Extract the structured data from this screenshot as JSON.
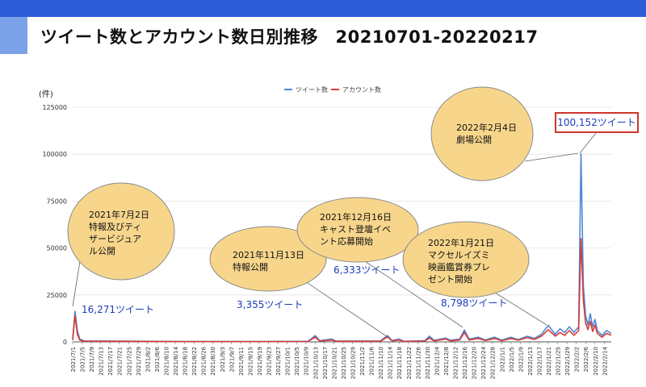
{
  "title": "ツイート数とアカウント数日別推移　20210701-20220217",
  "y_unit": "(件)",
  "legend": [
    "ツイート数",
    "アカウント数"
  ],
  "colors": {
    "tweets": "#4f86d6",
    "accounts": "#d63c35",
    "bubble_fill": "#f7d68c",
    "bubble_stroke": "#8a8a8a",
    "label_blue": "#1a3cb8"
  },
  "chart_data": {
    "type": "line",
    "ylabel": "(件)",
    "ylim": [
      0,
      125000
    ],
    "yticks": [
      0,
      25000,
      50000,
      75000,
      100000,
      125000
    ],
    "x_tick_labels": [
      "2021/7/1",
      "2021/7/5",
      "2021/7/9",
      "2021/7/13",
      "2021/7/17",
      "2021/7/21",
      "2021/7/25",
      "2021/7/29",
      "2021/8/2",
      "2021/8/6",
      "2021/8/10",
      "2021/8/14",
      "2021/8/18",
      "2021/8/22",
      "2021/8/26",
      "2021/8/30",
      "2021/9/3",
      "2021/9/7",
      "2021/9/11",
      "2021/9/15",
      "2021/9/19",
      "2021/9/23",
      "2021/9/27",
      "2021/10/1",
      "2021/10/5",
      "2021/10/9",
      "2021/10/13",
      "2021/10/17",
      "2021/10/21",
      "2021/10/25",
      "2021/10/29",
      "2021/11/2",
      "2021/11/6",
      "2021/11/10",
      "2021/11/14",
      "2021/11/18",
      "2021/11/22",
      "2021/11/26",
      "2021/11/30",
      "2021/12/4",
      "2021/12/8",
      "2021/12/12",
      "2021/12/16",
      "2021/12/20",
      "2021/12/24",
      "2021/12/28",
      "2022/1/1",
      "2022/1/5",
      "2022/1/9",
      "2022/1/13",
      "2022/1/17",
      "2022/1/21",
      "2022/1/25",
      "2022/1/29",
      "2022/2/2",
      "2022/2/6",
      "2022/2/10",
      "2022/2/14"
    ],
    "series": [
      {
        "name": "ツイート数",
        "points": [
          [
            "2021/7/1",
            1200
          ],
          [
            "2021/7/2",
            16271
          ],
          [
            "2021/7/3",
            6000
          ],
          [
            "2021/7/4",
            1500
          ],
          [
            "2021/7/6",
            500
          ],
          [
            "2021/7/20",
            400
          ],
          [
            "2021/8/15",
            200
          ],
          [
            "2021/9/20",
            200
          ],
          [
            "2021/10/10",
            300
          ],
          [
            "2021/10/13",
            3355
          ],
          [
            "2021/10/15",
            600
          ],
          [
            "2021/10/20",
            1500
          ],
          [
            "2021/10/22",
            400
          ],
          [
            "2021/11/10",
            500
          ],
          [
            "2021/11/13",
            3355
          ],
          [
            "2021/11/15",
            700
          ],
          [
            "2021/11/18",
            1500
          ],
          [
            "2021/11/20",
            300
          ],
          [
            "2021/11/29",
            600
          ],
          [
            "2021/12/1",
            3000
          ],
          [
            "2021/12/3",
            800
          ],
          [
            "2021/12/8",
            2000
          ],
          [
            "2021/12/10",
            800
          ],
          [
            "2021/12/14",
            1500
          ],
          [
            "2021/12/16",
            6333
          ],
          [
            "2021/12/18",
            1500
          ],
          [
            "2021/12/22",
            2500
          ],
          [
            "2021/12/25",
            1000
          ],
          [
            "2021/12/29",
            2500
          ],
          [
            "2022/1/1",
            900
          ],
          [
            "2022/1/5",
            2500
          ],
          [
            "2022/1/8",
            1200
          ],
          [
            "2022/1/12",
            3000
          ],
          [
            "2022/1/15",
            1800
          ],
          [
            "2022/1/18",
            4000
          ],
          [
            "2022/1/21",
            8798
          ],
          [
            "2022/1/24",
            4000
          ],
          [
            "2022/1/26",
            7000
          ],
          [
            "2022/1/28",
            5000
          ],
          [
            "2022/1/30",
            8000
          ],
          [
            "2022/2/1",
            5000
          ],
          [
            "2022/2/3",
            8000
          ],
          [
            "2022/2/4",
            100152
          ],
          [
            "2022/2/5",
            30000
          ],
          [
            "2022/2/6",
            14000
          ],
          [
            "2022/2/7",
            9000
          ],
          [
            "2022/2/8",
            15000
          ],
          [
            "2022/2/9",
            8000
          ],
          [
            "2022/2/10",
            12000
          ],
          [
            "2022/2/11",
            6000
          ],
          [
            "2022/2/13",
            3500
          ],
          [
            "2022/2/15",
            6000
          ],
          [
            "2022/2/17",
            4500
          ]
        ]
      },
      {
        "name": "アカウント数",
        "points": [
          [
            "2021/7/1",
            900
          ],
          [
            "2021/7/2",
            14000
          ],
          [
            "2021/7/3",
            4000
          ],
          [
            "2021/7/4",
            1000
          ],
          [
            "2021/7/6",
            300
          ],
          [
            "2021/7/20",
            300
          ],
          [
            "2021/8/15",
            150
          ],
          [
            "2021/9/20",
            150
          ],
          [
            "2021/10/10",
            200
          ],
          [
            "2021/10/13",
            2500
          ],
          [
            "2021/10/15",
            400
          ],
          [
            "2021/10/20",
            1000
          ],
          [
            "2021/10/22",
            300
          ],
          [
            "2021/11/10",
            300
          ],
          [
            "2021/11/13",
            2600
          ],
          [
            "2021/11/15",
            500
          ],
          [
            "2021/11/18",
            1000
          ],
          [
            "2021/11/20",
            200
          ],
          [
            "2021/11/29",
            400
          ],
          [
            "2021/12/1",
            2000
          ],
          [
            "2021/12/3",
            500
          ],
          [
            "2021/12/8",
            1500
          ],
          [
            "2021/12/10",
            500
          ],
          [
            "2021/12/14",
            1000
          ],
          [
            "2021/12/16",
            5000
          ],
          [
            "2021/12/18",
            1000
          ],
          [
            "2021/12/22",
            1800
          ],
          [
            "2021/12/25",
            700
          ],
          [
            "2021/12/29",
            1800
          ],
          [
            "2022/1/1",
            600
          ],
          [
            "2022/1/5",
            1800
          ],
          [
            "2022/1/8",
            900
          ],
          [
            "2022/1/12",
            2200
          ],
          [
            "2022/1/15",
            1300
          ],
          [
            "2022/1/18",
            3000
          ],
          [
            "2022/1/21",
            6500
          ],
          [
            "2022/1/24",
            3000
          ],
          [
            "2022/1/26",
            5000
          ],
          [
            "2022/1/28",
            3500
          ],
          [
            "2022/1/30",
            6000
          ],
          [
            "2022/2/1",
            3500
          ],
          [
            "2022/2/3",
            6000
          ],
          [
            "2022/2/4",
            55000
          ],
          [
            "2022/2/5",
            22000
          ],
          [
            "2022/2/6",
            10000
          ],
          [
            "2022/2/7",
            6500
          ],
          [
            "2022/2/8",
            11000
          ],
          [
            "2022/2/9",
            5500
          ],
          [
            "2022/2/10",
            9000
          ],
          [
            "2022/2/11",
            4500
          ],
          [
            "2022/2/13",
            2500
          ],
          [
            "2022/2/15",
            4500
          ],
          [
            "2022/2/17",
            3500
          ]
        ]
      }
    ],
    "annotations": [
      {
        "text": "2021年7月2日\n特報及びティ\nザービジュア\nル公開",
        "date": "2021/7/2",
        "count": "16,271ツイート"
      },
      {
        "text": "2021年11月13日\n特報公開",
        "date": "2021/11/13",
        "count": "3,355ツイート"
      },
      {
        "text": "2021年12月16日\nキャスト登壇イベ\nント応募開始",
        "date": "2021/12/16",
        "count": "6,333ツイート"
      },
      {
        "text": "2022年1月21日\nマクセルイズミ\n映画鑑賞券プレ\nゼント開始",
        "date": "2022/1/21",
        "count": "8,798ツイート"
      },
      {
        "text": "2022年2月4日\n劇場公開",
        "date": "2022/2/4",
        "count": "100,152ツイート"
      }
    ]
  }
}
